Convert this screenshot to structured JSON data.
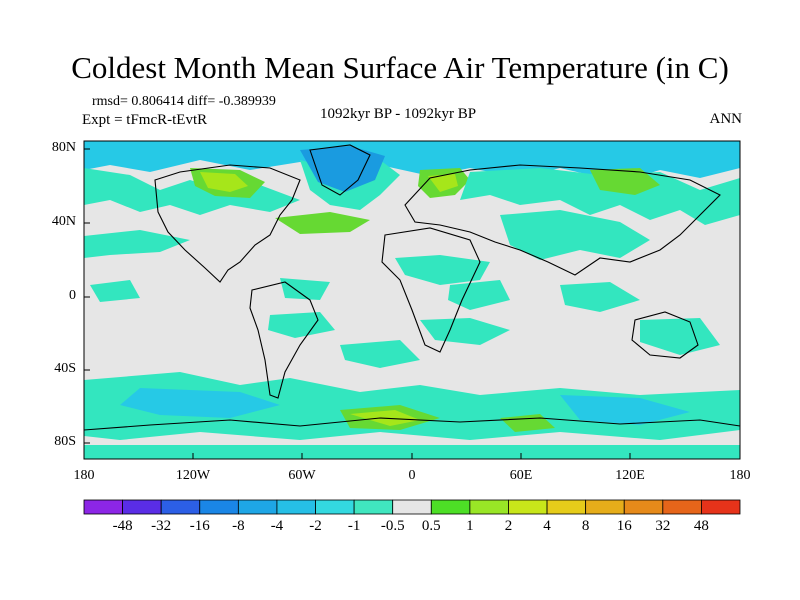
{
  "title": "Coldest Month Mean Surface Air Temperature (in C)",
  "stats_line": "rmsd= 0.806414 diff= -0.389939",
  "experiment": "Expt = tFmcR-tEvtR",
  "period": "1092kyr BP - 1092kyr BP",
  "season": "ANN",
  "colors": {
    "background_field": "#e6e6e6",
    "coast": "#000000",
    "negative_small": "#33e6bf",
    "negative_mid": "#26c9e6",
    "negative_large": "#1a9be0",
    "positive_small": "#66d933",
    "positive_mid": "#a6e61a"
  },
  "latitude_labels": [
    "80N",
    "40N",
    "0",
    "40S",
    "80S"
  ],
  "longitude_labels": [
    "180",
    "120W",
    "60W",
    "0",
    "60E",
    "120E",
    "180"
  ],
  "colorbar": {
    "colors": [
      "#8c26e6",
      "#5a2de6",
      "#2c5fe6",
      "#1a86e6",
      "#1ea6e6",
      "#26bfe6",
      "#33d9e0",
      "#40e6bf",
      "#e6e6e6",
      "#4ddf26",
      "#99e626",
      "#c8e61a",
      "#e6cc1a",
      "#e6ad1a",
      "#e68a1a",
      "#e6651a",
      "#e6331a"
    ],
    "labels": [
      "-48",
      "-32",
      "-16",
      "-8",
      "-4",
      "-2",
      "-1",
      "-0.5",
      "0.5",
      "1",
      "2",
      "4",
      "8",
      "16",
      "32",
      "48"
    ]
  }
}
